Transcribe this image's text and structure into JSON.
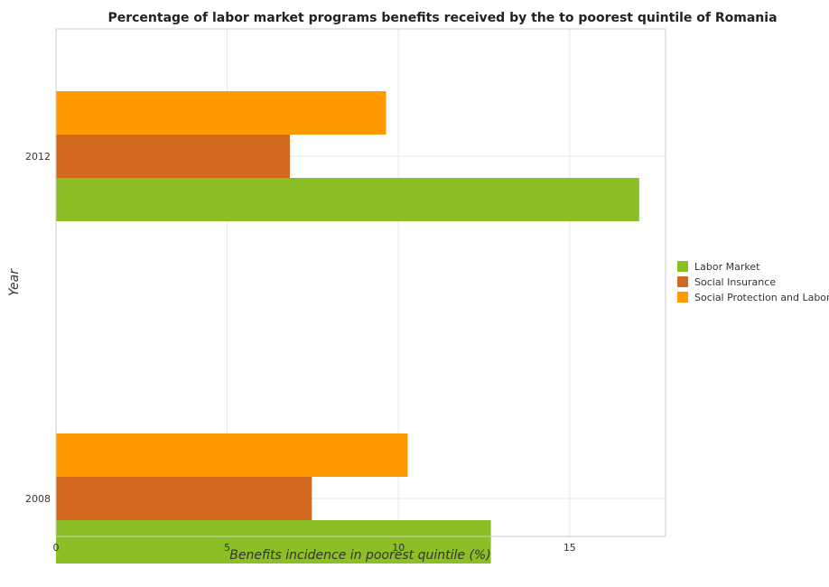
{
  "chart_data": {
    "type": "bar",
    "orientation": "horizontal",
    "title": "Percentage of labor market programs benefits received by the to poorest quintile of Romania",
    "xlabel": "Benefits incidence in poorest quintile (%)",
    "ylabel": "Year",
    "categories": [
      "2008",
      "2012"
    ],
    "series": [
      {
        "name": "Labor Market",
        "color": "#8cbf26",
        "values": [
          12.7,
          17.03
        ]
      },
      {
        "name": "Social Insurance",
        "color": "#d2691e",
        "values": [
          7.47,
          6.83
        ]
      },
      {
        "name": "Social Protection and Labor",
        "color": "#ff9900",
        "values": [
          10.27,
          9.64
        ]
      }
    ],
    "xlim": [
      0,
      17.8
    ],
    "xticks": [
      "0",
      "5",
      "10",
      "15"
    ],
    "grid": true,
    "legend": "right"
  }
}
